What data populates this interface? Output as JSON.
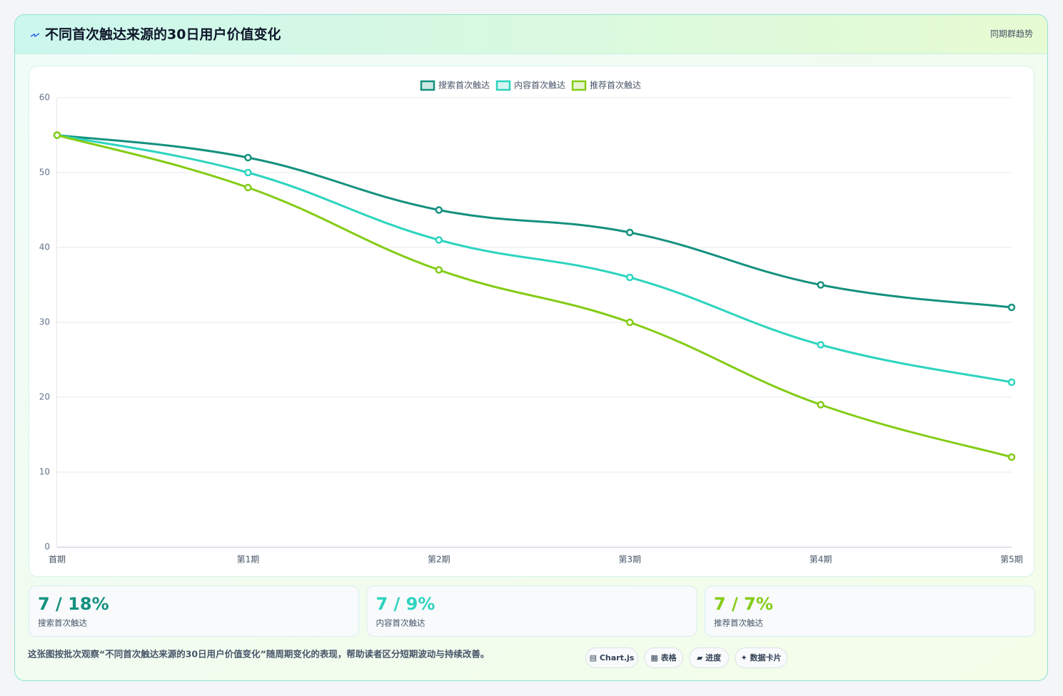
{
  "header": {
    "title": "不同首次触达来源的30日用户价值变化",
    "tag": "同期群趋势"
  },
  "chart_data": {
    "type": "line",
    "categories": [
      "首期",
      "第1期",
      "第2期",
      "第3期",
      "第4期",
      "第5期"
    ],
    "series": [
      {
        "name": "搜索首次触达",
        "color": "#14917f",
        "values": [
          55,
          52,
          45,
          42,
          35,
          32
        ]
      },
      {
        "name": "内容首次触达",
        "color": "#2dd4bf",
        "values": [
          55,
          50,
          41,
          36,
          27,
          22
        ]
      },
      {
        "name": "推荐首次触达",
        "color": "#84cc16",
        "values": [
          55,
          48,
          37,
          30,
          19,
          12
        ]
      }
    ],
    "ylim": [
      0,
      60
    ],
    "yticks": [
      0,
      10,
      20,
      30,
      40,
      50,
      60
    ],
    "grid": true,
    "legend": "top"
  },
  "cards": [
    {
      "value": "7 / 18%",
      "label": "搜索首次触达"
    },
    {
      "value": "7 / 9%",
      "label": "内容首次触达"
    },
    {
      "value": "7 / 7%",
      "label": "推荐首次触达"
    }
  ],
  "footer": {
    "note": "这张图按批次观察“不同首次触达来源的30日用户价值变化”随周期变化的表现，帮助读者区分短期波动与持续改善。",
    "buttons": [
      "▤ Chart.js",
      "▦ 表格",
      "▰ 进度",
      "✦ 数据卡片"
    ]
  }
}
